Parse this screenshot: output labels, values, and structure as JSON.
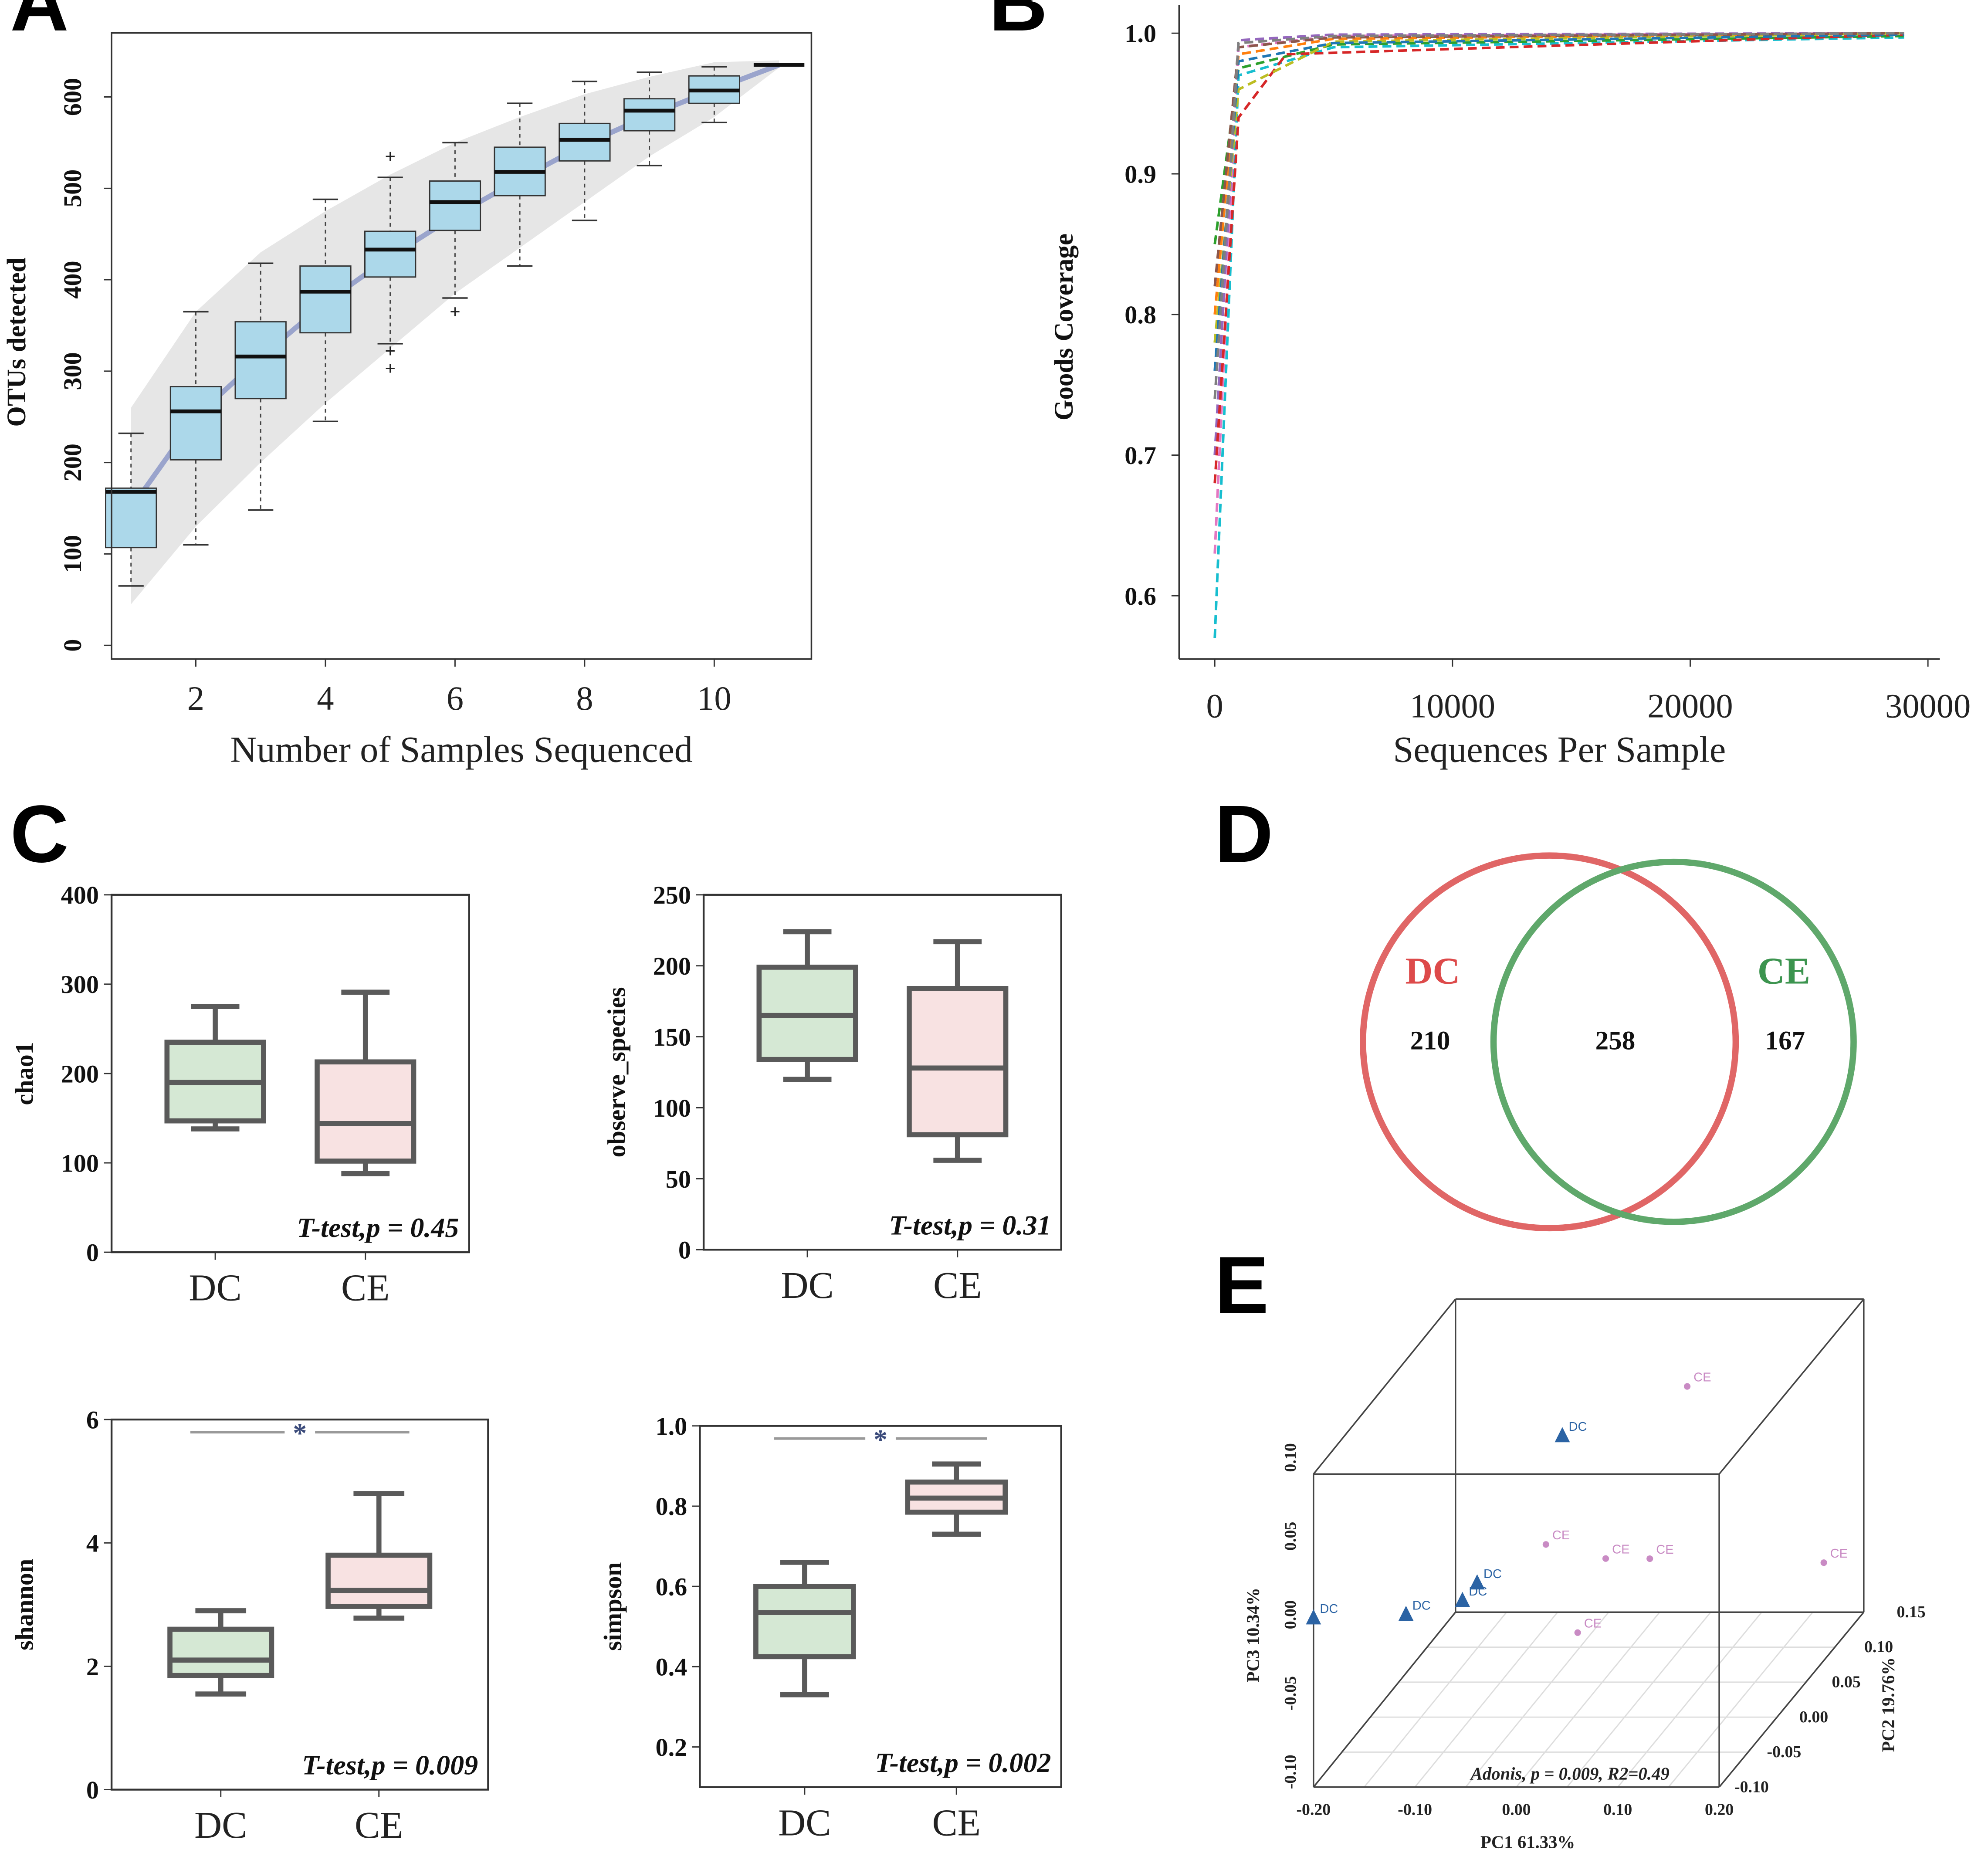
{
  "panel_labels": [
    "A",
    "B",
    "C",
    "D",
    "E"
  ],
  "chart_data": [
    {
      "id": "A",
      "type": "box",
      "xlabel": "Number of Samples Sequenced",
      "ylabel": "OTUs detected",
      "xlim": [
        0.7,
        11.5
      ],
      "ylim": [
        -15,
        670
      ],
      "xticks": [
        2,
        4,
        6,
        8,
        10
      ],
      "yticks": [
        0,
        100,
        200,
        300,
        400,
        500,
        600
      ],
      "fit_curve": [
        [
          1,
          150
        ],
        [
          2,
          250
        ],
        [
          3,
          315
        ],
        [
          4,
          375
        ],
        [
          5,
          425
        ],
        [
          6,
          470
        ],
        [
          7,
          510
        ],
        [
          8,
          548
        ],
        [
          9,
          580
        ],
        [
          10,
          608
        ],
        [
          11,
          635
        ]
      ],
      "band_upper": [
        [
          1,
          260
        ],
        [
          2,
          365
        ],
        [
          3,
          430
        ],
        [
          4,
          475
        ],
        [
          5,
          515
        ],
        [
          6,
          550
        ],
        [
          7,
          578
        ],
        [
          8,
          603
        ],
        [
          9,
          622
        ],
        [
          10,
          638
        ],
        [
          11,
          640
        ]
      ],
      "band_lower": [
        [
          1,
          45
        ],
        [
          2,
          130
        ],
        [
          3,
          200
        ],
        [
          4,
          265
        ],
        [
          5,
          325
        ],
        [
          6,
          385
        ],
        [
          7,
          435
        ],
        [
          8,
          485
        ],
        [
          9,
          535
        ],
        [
          10,
          578
        ],
        [
          11,
          632
        ]
      ],
      "boxes": [
        {
          "x": 1,
          "min": 65,
          "q1": 107,
          "median": 168,
          "q3": 172,
          "max": 232,
          "outliers": []
        },
        {
          "x": 2,
          "min": 110,
          "q1": 203,
          "median": 256,
          "q3": 283,
          "max": 365,
          "outliers": []
        },
        {
          "x": 3,
          "min": 148,
          "q1": 270,
          "median": 316,
          "q3": 354,
          "max": 418,
          "outliers": []
        },
        {
          "x": 4,
          "min": 245,
          "q1": 342,
          "median": 387,
          "q3": 415,
          "max": 488,
          "outliers": []
        },
        {
          "x": 5,
          "min": 330,
          "q1": 403,
          "median": 433,
          "q3": 453,
          "max": 512,
          "outliers": [
            303,
            322,
            535
          ]
        },
        {
          "x": 6,
          "min": 380,
          "q1": 454,
          "median": 485,
          "q3": 508,
          "max": 550,
          "outliers": [
            365
          ]
        },
        {
          "x": 7,
          "min": 415,
          "q1": 492,
          "median": 518,
          "q3": 545,
          "max": 593,
          "outliers": []
        },
        {
          "x": 8,
          "min": 465,
          "q1": 530,
          "median": 553,
          "q3": 571,
          "max": 617,
          "outliers": []
        },
        {
          "x": 9,
          "min": 525,
          "q1": 563,
          "median": 585,
          "q3": 598,
          "max": 627,
          "outliers": []
        },
        {
          "x": 10,
          "min": 572,
          "q1": 593,
          "median": 607,
          "q3": 623,
          "max": 633,
          "outliers": []
        },
        {
          "x": 11,
          "min": 635,
          "q1": 635,
          "median": 635,
          "q3": 635,
          "max": 635,
          "outliers": []
        }
      ]
    },
    {
      "id": "B",
      "type": "line",
      "xlabel": "Sequences Per Sample",
      "ylabel": "Goods Coverage",
      "xlim": [
        -1500,
        30500
      ],
      "ylim": [
        0.555,
        1.02
      ],
      "xticks": [
        0,
        10000,
        20000,
        30000
      ],
      "yticks": [
        0.6,
        0.7,
        0.8,
        0.9,
        1.0
      ],
      "series": [
        {
          "color": "#e377c2",
          "points": [
            [
              0,
              0.63
            ],
            [
              1000,
              0.99
            ],
            [
              5000,
              0.998
            ],
            [
              29000,
              1.0
            ]
          ]
        },
        {
          "color": "#17becf",
          "points": [
            [
              0,
              0.57
            ],
            [
              1000,
              0.97
            ],
            [
              5000,
              0.99
            ],
            [
              29000,
              0.997
            ]
          ]
        },
        {
          "color": "#2ca02c",
          "points": [
            [
              0,
              0.85
            ],
            [
              1000,
              0.975
            ],
            [
              5000,
              0.992
            ],
            [
              29000,
              0.998
            ]
          ]
        },
        {
          "color": "#ff7f0e",
          "points": [
            [
              0,
              0.8
            ],
            [
              1000,
              0.985
            ],
            [
              5000,
              0.996
            ],
            [
              29000,
              1.0
            ]
          ]
        },
        {
          "color": "#9467bd",
          "points": [
            [
              0,
              0.7
            ],
            [
              1000,
              0.995
            ],
            [
              5000,
              0.999
            ],
            [
              29000,
              1.0
            ]
          ]
        },
        {
          "color": "#d62728",
          "points": [
            [
              0,
              0.68
            ],
            [
              1000,
              0.94
            ],
            [
              3000,
              0.985
            ],
            [
              29000,
              0.999
            ]
          ]
        },
        {
          "color": "#bcbd22",
          "points": [
            [
              0,
              0.78
            ],
            [
              1000,
              0.96
            ],
            [
              5000,
              0.994
            ],
            [
              29000,
              1.0
            ]
          ]
        },
        {
          "color": "#1f77b4",
          "points": [
            [
              0,
              0.76
            ],
            [
              1000,
              0.98
            ],
            [
              5000,
              0.993
            ],
            [
              29000,
              0.999
            ]
          ]
        },
        {
          "color": "#8c564b",
          "points": [
            [
              0,
              0.82
            ],
            [
              1000,
              0.99
            ],
            [
              5000,
              0.997
            ],
            [
              29000,
              1.0
            ]
          ]
        },
        {
          "color": "#7f7f7f",
          "points": [
            [
              0,
              0.74
            ],
            [
              1000,
              0.993
            ],
            [
              5000,
              0.998
            ],
            [
              29000,
              1.0
            ]
          ]
        }
      ]
    },
    {
      "id": "C1",
      "type": "box",
      "ylabel": "chao1",
      "categories": [
        "DC",
        "CE"
      ],
      "ylim": [
        0,
        400
      ],
      "yticks": [
        0,
        100,
        200,
        300,
        400
      ],
      "boxes": [
        {
          "name": "DC",
          "min": 138,
          "q1": 147,
          "median": 190,
          "q3": 235,
          "max": 275
        },
        {
          "name": "CE",
          "min": 88,
          "q1": 102,
          "median": 144,
          "q3": 213,
          "max": 291
        }
      ],
      "annotation": "T-test,p = 0.45",
      "significance": ""
    },
    {
      "id": "C2",
      "type": "box",
      "ylabel": "observe_species",
      "categories": [
        "DC",
        "CE"
      ],
      "ylim": [
        0,
        250
      ],
      "yticks": [
        0,
        50,
        100,
        150,
        200,
        250
      ],
      "boxes": [
        {
          "name": "DC",
          "min": 120,
          "q1": 134,
          "median": 165,
          "q3": 199,
          "max": 224
        },
        {
          "name": "CE",
          "min": 63,
          "q1": 81,
          "median": 128,
          "q3": 184,
          "max": 217
        }
      ],
      "annotation": "T-test,p = 0.31",
      "significance": ""
    },
    {
      "id": "C3",
      "type": "box",
      "ylabel": "shannon",
      "categories": [
        "DC",
        "CE"
      ],
      "ylim": [
        0,
        6
      ],
      "yticks": [
        0,
        2,
        4,
        6
      ],
      "boxes": [
        {
          "name": "DC",
          "min": 1.55,
          "q1": 1.85,
          "median": 2.1,
          "q3": 2.6,
          "max": 2.9
        },
        {
          "name": "CE",
          "min": 2.78,
          "q1": 2.97,
          "median": 3.23,
          "q3": 3.8,
          "max": 4.8
        }
      ],
      "annotation": "T-test,p = 0.009",
      "significance": "*"
    },
    {
      "id": "C4",
      "type": "box",
      "ylabel": "simpson",
      "categories": [
        "DC",
        "CE"
      ],
      "ylim": [
        0.1,
        1.0
      ],
      "yticks": [
        0.2,
        0.4,
        0.6,
        0.8,
        1.0
      ],
      "tick_labels": [
        "0.2",
        "0.4",
        "0.6",
        "0.8",
        "1.0"
      ],
      "boxes": [
        {
          "name": "DC",
          "min": 0.33,
          "q1": 0.425,
          "median": 0.535,
          "q3": 0.6,
          "max": 0.66
        },
        {
          "name": "CE",
          "min": 0.73,
          "q1": 0.785,
          "median": 0.82,
          "q3": 0.86,
          "max": 0.905
        }
      ],
      "annotation": "T-test,p = 0.002",
      "significance": "*"
    },
    {
      "id": "D",
      "type": "venn",
      "sets": [
        {
          "name": "DC",
          "color": "#e06666",
          "only": "210"
        },
        {
          "name": "CE",
          "color": "#5fa86b",
          "only": "167"
        }
      ],
      "shared": "258"
    },
    {
      "id": "E",
      "type": "scatter3d",
      "xlabel": "PC1 61.33%",
      "ylabel": "PC2 19.76%",
      "zlabel": "PC3 10.34%",
      "xticks": [
        "-0.20",
        "-0.10",
        "0.00",
        "0.10",
        "0.20"
      ],
      "yticks": [
        "-0.10",
        "-0.05",
        "0.00",
        "0.05",
        "0.10",
        "0.15"
      ],
      "zticks": [
        "-0.10",
        "-0.05",
        "0.00",
        "0.05",
        "0.10"
      ],
      "annotation": "Adonis, p = 0.009, R2=0.49",
      "series": [
        {
          "name": "DC",
          "marker": "triangle",
          "color": "#2b63a4",
          "points": [
            [
              -0.05,
              0.1,
              0.1
            ],
            [
              -0.2,
              -0.1,
              0.06
            ],
            [
              -0.11,
              -0.08,
              0.05
            ],
            [
              -0.06,
              -0.06,
              0.05
            ],
            [
              -0.05,
              -0.05,
              0.06
            ]
          ]
        },
        {
          "name": "CE",
          "marker": "circle",
          "color": "#c98bc4",
          "points": [
            [
              0.12,
              0.05,
              0.18
            ],
            [
              0.02,
              -0.04,
              0.09
            ],
            [
              0.08,
              -0.03,
              0.07
            ],
            [
              0.11,
              0.0,
              0.05
            ],
            [
              0.03,
              0.0,
              -0.02
            ],
            [
              0.24,
              0.1,
              -0.02
            ]
          ]
        }
      ]
    }
  ]
}
